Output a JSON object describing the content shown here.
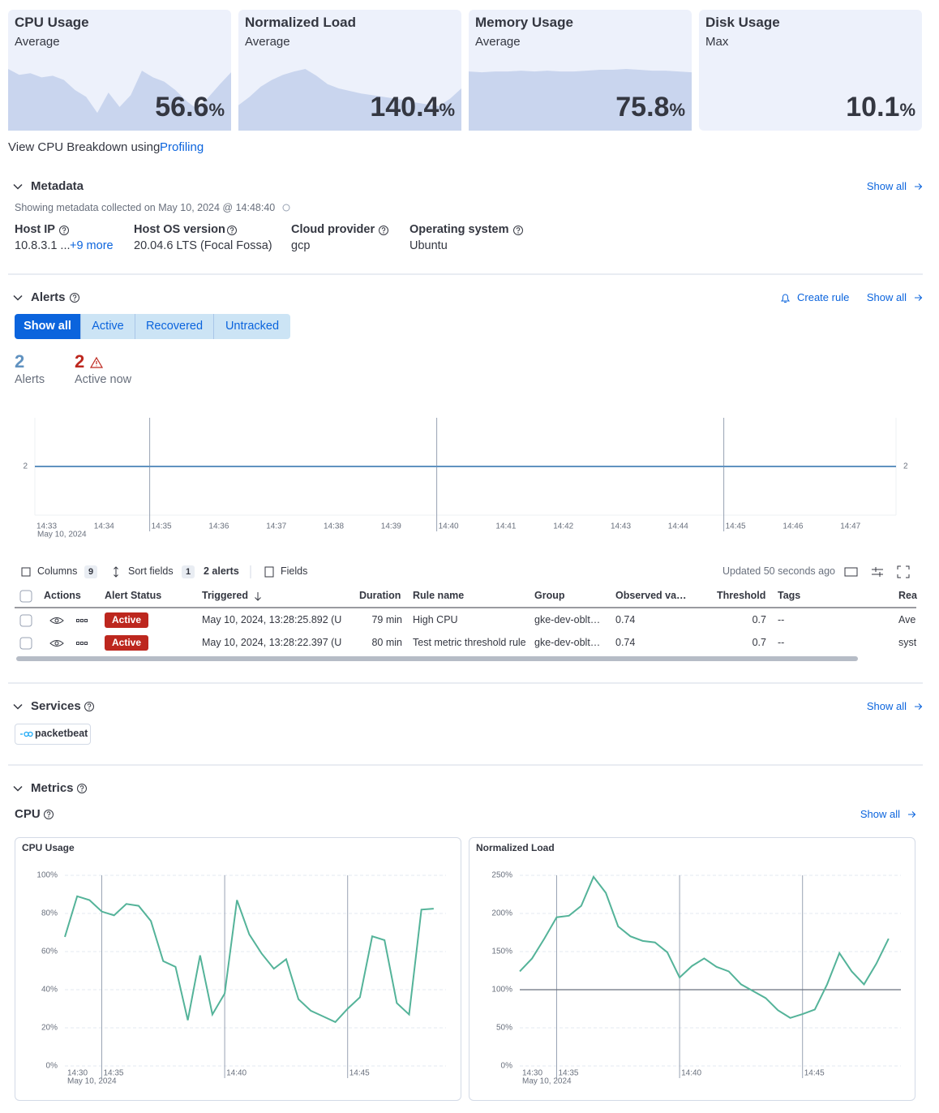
{
  "stat_cards": [
    {
      "title": "CPU Usage",
      "subtitle": "Average",
      "value": 56.6,
      "unit": "%",
      "sparkline": [
        73,
        66,
        68,
        63,
        65,
        60,
        48,
        40,
        21,
        45,
        28,
        42,
        71,
        63,
        58,
        48,
        35,
        25,
        40,
        55,
        69
      ]
    },
    {
      "title": "Normalized Load",
      "subtitle": "Average",
      "value": 140.4,
      "unit": "%",
      "sparkline": [
        30,
        40,
        52,
        60,
        66,
        70,
        73,
        65,
        55,
        50,
        47,
        44,
        42,
        40,
        38,
        36,
        33,
        31,
        29,
        38,
        50
      ]
    },
    {
      "title": "Memory Usage",
      "subtitle": "Average",
      "value": 75.8,
      "unit": "%",
      "sparkline": [
        70,
        69,
        70,
        70,
        71,
        70,
        71,
        70,
        70,
        71,
        72,
        72,
        73,
        72,
        71,
        71,
        70,
        69
      ]
    },
    {
      "title": "Disk Usage",
      "subtitle": "Max",
      "value": 10.1,
      "unit": "%"
    }
  ],
  "profiling": {
    "text": "View CPU Breakdown using",
    "link": "Profiling"
  },
  "metadata": {
    "title": "Metadata",
    "show_all": "Show all",
    "note": "Showing metadata collected on May 10, 2024 @ 14:48:40",
    "fields": [
      {
        "label": "Host IP",
        "value": "10.8.3.1 ...",
        "more": "+9 more"
      },
      {
        "label": "Host OS version",
        "value": "20.04.6 LTS (Focal Fossa)"
      },
      {
        "label": "Cloud provider",
        "value": "gcp"
      },
      {
        "label": "Operating system",
        "value": "Ubuntu"
      }
    ]
  },
  "alerts": {
    "title": "Alerts",
    "create_rule": "Create rule",
    "show_all": "Show all",
    "tabs": [
      "Show all",
      "Active",
      "Recovered",
      "Untracked"
    ],
    "stats": [
      {
        "value": 2,
        "label": "Alerts"
      },
      {
        "value": 2,
        "label": "Active now"
      }
    ],
    "toolbar": {
      "columns": "Columns",
      "columns_count": 9,
      "sort_fields": "Sort fields",
      "sort_count": 1,
      "alert_count": "2 alerts",
      "fields": "Fields",
      "updated": "Updated 50 seconds ago"
    },
    "table": {
      "columns": [
        "Actions",
        "Alert Status",
        "Triggered",
        "Duration",
        "Rule name",
        "Group",
        "Observed va…",
        "Threshold",
        "Tags",
        "Rea"
      ],
      "rows": [
        [
          "Active",
          "May 10, 2024, 13:28:25.892 (U",
          "79 min",
          "High CPU",
          "gke-dev-oblt…",
          "0.74",
          "0.7",
          "--",
          "Ave"
        ],
        [
          "Active",
          "May 10, 2024, 13:28:22.397 (U",
          "80 min",
          "Test metric threshold rule",
          "gke-dev-oblt…",
          "0.74",
          "0.7",
          "--",
          "syst"
        ]
      ]
    }
  },
  "services": {
    "title": "Services",
    "show_all": "Show all",
    "items": [
      "packetbeat"
    ]
  },
  "metrics": {
    "title": "Metrics",
    "section": "CPU",
    "show_all": "Show all"
  },
  "chart_data": [
    {
      "type": "line",
      "x": [
        "14:33",
        "14:48"
      ],
      "values": [
        2,
        2
      ],
      "color": "#6092c0",
      "xlim": [
        "14:33",
        "14:48"
      ],
      "xticks": [
        "14:33",
        "14:34",
        "14:35",
        "14:36",
        "14:37",
        "14:38",
        "14:39",
        "14:40",
        "14:41",
        "14:42",
        "14:43",
        "14:44",
        "14:45",
        "14:46",
        "14:47"
      ],
      "x_date_label": "May 10, 2024",
      "ylim": [
        1,
        3
      ],
      "yticks": [
        2
      ]
    },
    {
      "type": "line",
      "title": "CPU Usage",
      "color": "#54b399",
      "x": [
        "14:33:30",
        "14:34:00",
        "14:34:30",
        "14:35:00",
        "14:35:30",
        "14:36:00",
        "14:36:30",
        "14:37:00",
        "14:37:30",
        "14:38:00",
        "14:38:30",
        "14:39:00",
        "14:39:30",
        "14:40:00",
        "14:40:30",
        "14:41:00",
        "14:41:30",
        "14:42:00",
        "14:42:30",
        "14:43:00",
        "14:43:30",
        "14:44:00",
        "14:44:30",
        "14:45:00",
        "14:45:30",
        "14:46:00",
        "14:46:30",
        "14:47:00",
        "14:47:30",
        "14:48:00",
        "14:48:30"
      ],
      "values": [
        67.7,
        89,
        87,
        81,
        79,
        85,
        84,
        76,
        55,
        52,
        24,
        58,
        27,
        38,
        87,
        69,
        59,
        51,
        56,
        35,
        29,
        26,
        23,
        30,
        36,
        68,
        66,
        33,
        27,
        82,
        82.5
      ],
      "xlim": [
        "14:33:30",
        "14:49"
      ],
      "xticks": [
        "14:35",
        "14:40",
        "14:45"
      ],
      "x_start_label": "14:30",
      "x_date_label": "May 10, 2024",
      "ylim": [
        0,
        100
      ],
      "yticks": [
        {
          "value": 0,
          "label": "0%"
        },
        {
          "value": 20,
          "label": "20%"
        },
        {
          "value": 40,
          "label": "40%"
        },
        {
          "value": 60,
          "label": "60%"
        },
        {
          "value": 80,
          "label": "80%"
        },
        {
          "value": 100,
          "label": "100%"
        }
      ],
      "grid": true
    },
    {
      "type": "line",
      "title": "Normalized Load",
      "color": "#54b399",
      "x": [
        "14:33:30",
        "14:34:00",
        "14:34:30",
        "14:35:00",
        "14:35:30",
        "14:36:00",
        "14:36:30",
        "14:37:00",
        "14:37:30",
        "14:38:00",
        "14:38:30",
        "14:39:00",
        "14:39:30",
        "14:40:00",
        "14:40:30",
        "14:41:00",
        "14:41:30",
        "14:42:00",
        "14:42:30",
        "14:43:00",
        "14:43:30",
        "14:44:00",
        "14:44:30",
        "14:45:00",
        "14:45:30",
        "14:46:00",
        "14:46:30",
        "14:47:00",
        "14:47:30",
        "14:48:00",
        "14:48:30"
      ],
      "values": [
        124,
        141,
        167,
        195,
        197,
        210,
        248,
        227,
        183,
        170,
        164,
        162,
        149,
        116,
        131,
        141,
        130,
        124,
        107,
        98,
        89,
        73,
        63,
        68,
        74,
        107,
        148,
        124,
        107,
        134,
        167
      ],
      "xlim": [
        "14:33:30",
        "14:49"
      ],
      "xticks": [
        "14:35",
        "14:40",
        "14:45"
      ],
      "x_start_label": "14:30",
      "x_date_label": "May 10, 2024",
      "ylim": [
        0,
        250
      ],
      "yticks": [
        {
          "value": 0,
          "label": "0%"
        },
        {
          "value": 50,
          "label": "50%"
        },
        {
          "value": 100,
          "label": "100%"
        },
        {
          "value": 150,
          "label": "150%"
        },
        {
          "value": 200,
          "label": "200%"
        },
        {
          "value": 250,
          "label": "250%"
        }
      ],
      "grid": true,
      "reference_line": 100
    }
  ]
}
